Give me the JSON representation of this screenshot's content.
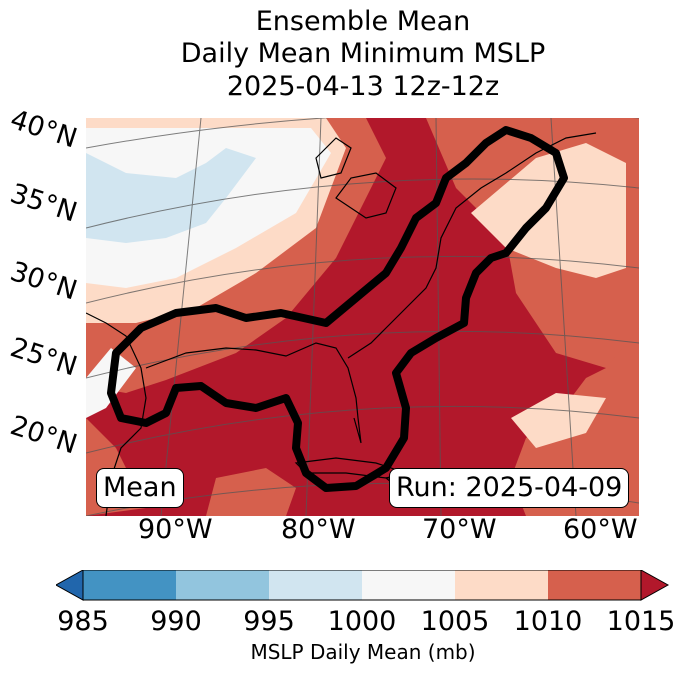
{
  "title": {
    "line1": "Ensemble Mean",
    "line2": "Daily Mean Minimum MSLP",
    "line3": "2025-04-13 12z-12z"
  },
  "map": {
    "lat_labels": [
      "40°N",
      "35°N",
      "30°N",
      "25°N",
      "20°N"
    ],
    "lon_labels": [
      "90°W",
      "80°W",
      "70°W",
      "60°W"
    ],
    "badge_left": "Mean",
    "badge_right": "Run: 2025-04-09",
    "contour_color": "#000000"
  },
  "colorbar": {
    "label": "MSLP Daily Mean (mb)",
    "ticks": [
      "985",
      "990",
      "995",
      "1000",
      "1005",
      "1010",
      "1015"
    ],
    "colors": [
      "#2166ac",
      "#4393c3",
      "#92c5de",
      "#d1e5f0",
      "#f7f7f7",
      "#fddbc7",
      "#d6604d",
      "#b2182b"
    ]
  }
}
